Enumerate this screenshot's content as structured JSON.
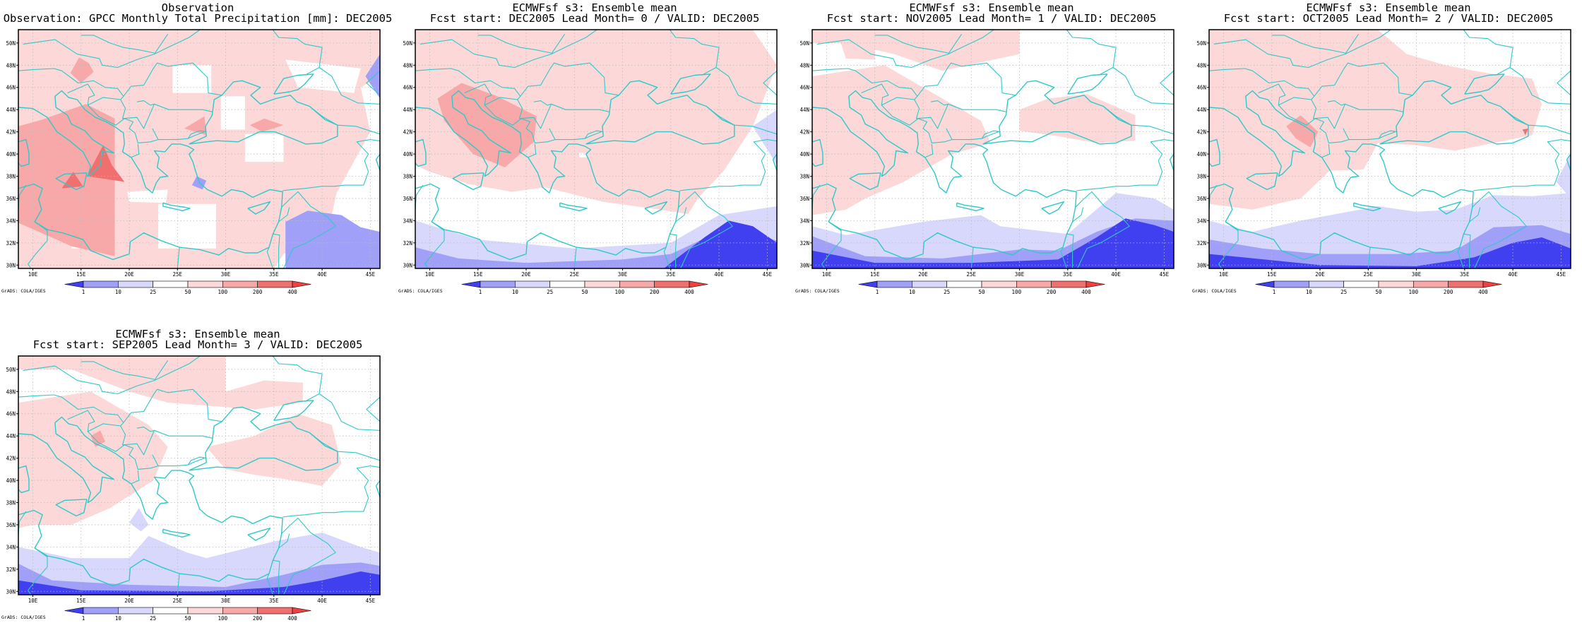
{
  "figure": {
    "panels": [
      {
        "title1": "Observation",
        "title2": "Observation: GPCC Monthly Total Precipitation [mm]: DEC2005"
      },
      {
        "title1": "ECMWFsf s3: Ensemble mean",
        "title2": "Fcst start: DEC2005  Lead Month= 0 / VALID: DEC2005"
      },
      {
        "title1": "ECMWFsf s3: Ensemble mean",
        "title2": "Fcst start: NOV2005  Lead Month= 1 / VALID: DEC2005"
      },
      {
        "title1": "ECMWFsf s3: Ensemble mean",
        "title2": "Fcst start: OCT2005  Lead Month= 2 / VALID: DEC2005"
      },
      {
        "title1": "ECMWFsf s3: Ensemble mean",
        "title2": "Fcst start: SEP2005  Lead Month= 3 / VALID: DEC2005"
      }
    ],
    "lon_ticks": [
      "10E",
      "15E",
      "20E",
      "25E",
      "30E",
      "35E",
      "40E",
      "45E"
    ],
    "lat_ticks": [
      "30N",
      "32N",
      "34N",
      "36N",
      "38N",
      "40N",
      "42N",
      "44N",
      "46N",
      "48N",
      "50N"
    ],
    "colorbar": {
      "labels": [
        "1",
        "10",
        "25",
        "50",
        "100",
        "200",
        "400"
      ],
      "colors": [
        "#4040f0",
        "#a0a0f8",
        "#d8d8fc",
        "#ffffff",
        "#fcd8d8",
        "#f8a8a8",
        "#f07070",
        "#f04040"
      ]
    },
    "credit": "GrADS: COLA/IGES",
    "colors": {
      "coast": "#30c8c8",
      "grid": "#bbbbbb"
    }
  }
}
